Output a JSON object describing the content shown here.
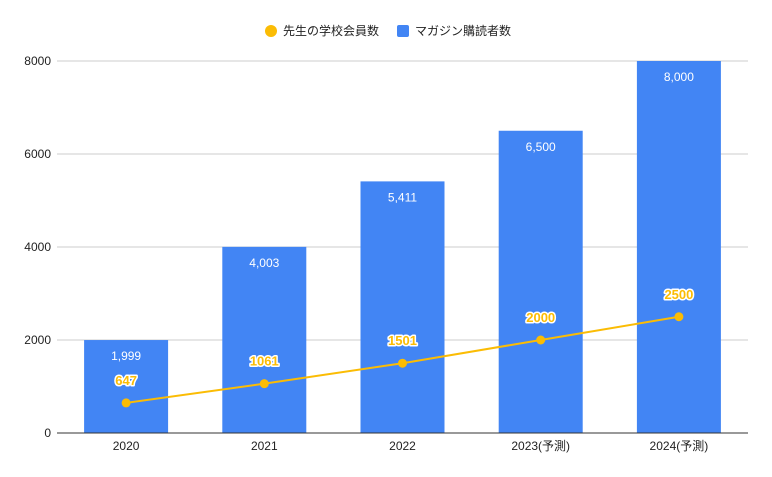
{
  "colors": {
    "bar": "#4285f4",
    "line": "#fbbc04",
    "grid": "#cccccc",
    "axis": "#333333",
    "text": "#222222"
  },
  "chart_data": {
    "type": "bar",
    "categories": [
      "2020",
      "2021",
      "2022",
      "2023(予測)",
      "2024(予測)"
    ],
    "series": [
      {
        "name": "マガジン購読者数",
        "type": "bar",
        "values": [
          1999,
          4003,
          5411,
          6500,
          8000
        ],
        "labels": [
          "1,999",
          "4,003",
          "5,411",
          "6,500",
          "8,000"
        ]
      },
      {
        "name": "先生の学校会員数",
        "type": "line",
        "values": [
          647,
          1061,
          1501,
          2000,
          2500
        ],
        "labels": [
          "647",
          "1061",
          "1501",
          "2000",
          "2500"
        ]
      }
    ],
    "ylim": [
      0,
      8000
    ],
    "yticks": [
      "0",
      "2000",
      "4000",
      "6000",
      "8000"
    ],
    "grid": true,
    "legend": "top-center"
  }
}
